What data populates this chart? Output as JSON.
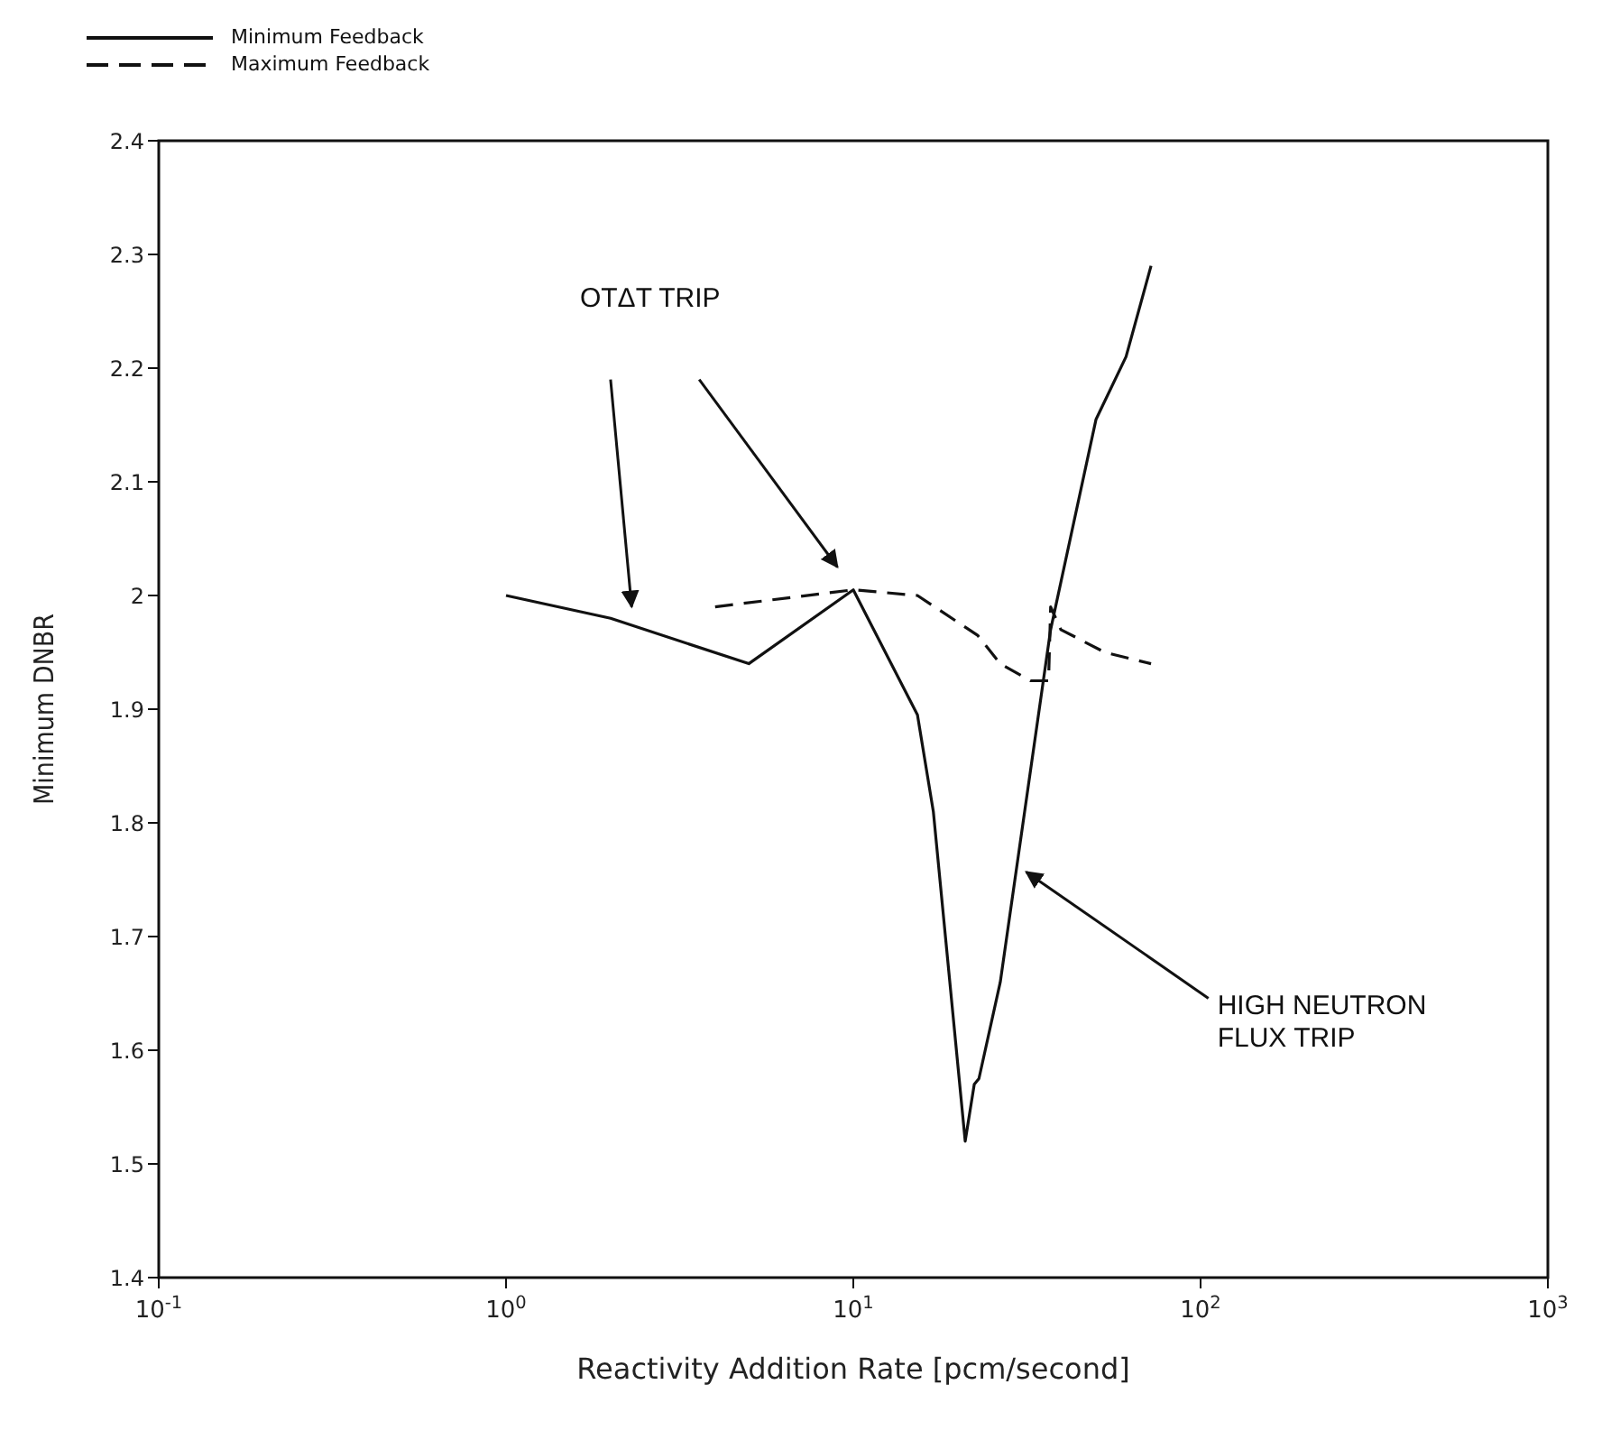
{
  "chart_data": {
    "type": "line",
    "xlabel": "Reactivity Addition Rate [pcm/second]",
    "ylabel": "Minimum DNBR",
    "log": "x",
    "xlim": [
      0.1,
      1000
    ],
    "xticks": [
      {
        "value": 0.1,
        "label": "10$^{-1}$"
      },
      {
        "value": 1,
        "label": "10$^{0}$"
      },
      {
        "value": 10,
        "label": "10$^{1}$"
      },
      {
        "value": 100,
        "label": "10$^{2}$"
      },
      {
        "value": 1000,
        "label": "10$^{3}$"
      }
    ],
    "ylim": [
      1.4,
      2.4
    ],
    "yticks": [
      1.4,
      1.5,
      1.6,
      1.7,
      1.8,
      1.9,
      2,
      2.1,
      2.2,
      2.3,
      2.4
    ],
    "grid": false,
    "legend": "top left",
    "marker": "none",
    "series": [
      {
        "name": "Minimum Feedback",
        "color": "#111111",
        "line_style": "solid",
        "x": [
          1,
          2,
          5,
          10,
          15.3,
          17,
          21,
          22.3,
          23,
          26.5,
          37,
          50,
          61,
          72
        ],
        "values": [
          2.0,
          1.98,
          1.94,
          2.005,
          1.895,
          1.81,
          1.52,
          1.57,
          1.575,
          1.66,
          1.97,
          2.155,
          2.21,
          2.29
        ]
      },
      {
        "name": "Maximum Feedback",
        "color": "#111111",
        "line_style": "dashed",
        "x": [
          4,
          10,
          15.3,
          22.8,
          26.5,
          32.4,
          36.5,
          37,
          39.6,
          53,
          72
        ],
        "values": [
          1.99,
          2.005,
          2.0,
          1.965,
          1.94,
          1.925,
          1.925,
          1.99,
          1.97,
          1.95,
          1.94
        ]
      }
    ],
    "annotations": [
      "OTΔT TRIP",
      {
        "text": "HIGH NEUTRON FLUX TRIP",
        "x": 30,
        "y": 1.76
      }
    ]
  }
}
